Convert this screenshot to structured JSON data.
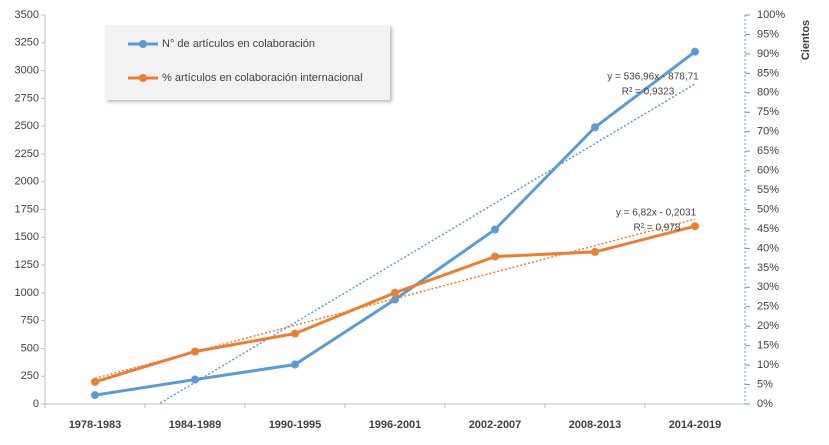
{
  "chart_data": {
    "type": "line",
    "categories": [
      "1978-1983",
      "1984-1989",
      "1990-1995",
      "1996-2001",
      "2002-2007",
      "2008-2013",
      "2014-2019"
    ],
    "series": [
      {
        "name": "N° de artículos en colaboración",
        "color": "#5b9bd5",
        "values": [
          80,
          220,
          355,
          940,
          1570,
          2490,
          3170
        ],
        "trendline": {
          "slope": 536.96,
          "intercept": -878.71,
          "equation": "y = 536,96x - 878,71",
          "r_squared": "R² = 0,9323"
        }
      },
      {
        "name": "% artículos en colaboración internacional",
        "color": "#ed7d31",
        "axis": "y2",
        "values": [
          5.7,
          13.5,
          18.1,
          28.6,
          37.9,
          39.1,
          45.7
        ],
        "trendline": {
          "slope": 6.82,
          "intercept": -0.2031,
          "equation": "y = 6,82x - 0,2031",
          "r_squared": "R² = 0,978"
        }
      }
    ],
    "ylim": [
      0,
      3500
    ],
    "yticks": [
      0,
      250,
      500,
      750,
      1000,
      1250,
      1500,
      1750,
      2000,
      2250,
      2500,
      2750,
      3000,
      3250,
      3500
    ],
    "y2lim": [
      0,
      100
    ],
    "y2ticks": [
      {
        "value": 0,
        "label": "0%"
      },
      {
        "value": 5,
        "label": "5%"
      },
      {
        "value": 10,
        "label": "10%"
      },
      {
        "value": 15,
        "label": "15%"
      },
      {
        "value": 20,
        "label": "20%"
      },
      {
        "value": 25,
        "label": "25%"
      },
      {
        "value": 30,
        "label": "30%"
      },
      {
        "value": 35,
        "label": "35%"
      },
      {
        "value": 40,
        "label": "40%"
      },
      {
        "value": 45,
        "label": "45%"
      },
      {
        "value": 50,
        "label": "50%"
      },
      {
        "value": 55,
        "label": "55%"
      },
      {
        "value": 60,
        "label": "60%"
      },
      {
        "value": 65,
        "label": "65%"
      },
      {
        "value": 70,
        "label": "70%"
      },
      {
        "value": 75,
        "label": "75%"
      },
      {
        "value": 80,
        "label": "80%"
      },
      {
        "value": 85,
        "label": "85%"
      },
      {
        "value": 90,
        "label": "90%"
      },
      {
        "value": 95,
        "label": "95%"
      },
      {
        "value": 100,
        "label": "100%"
      }
    ],
    "y2_label": "Cientos",
    "grid": false
  }
}
